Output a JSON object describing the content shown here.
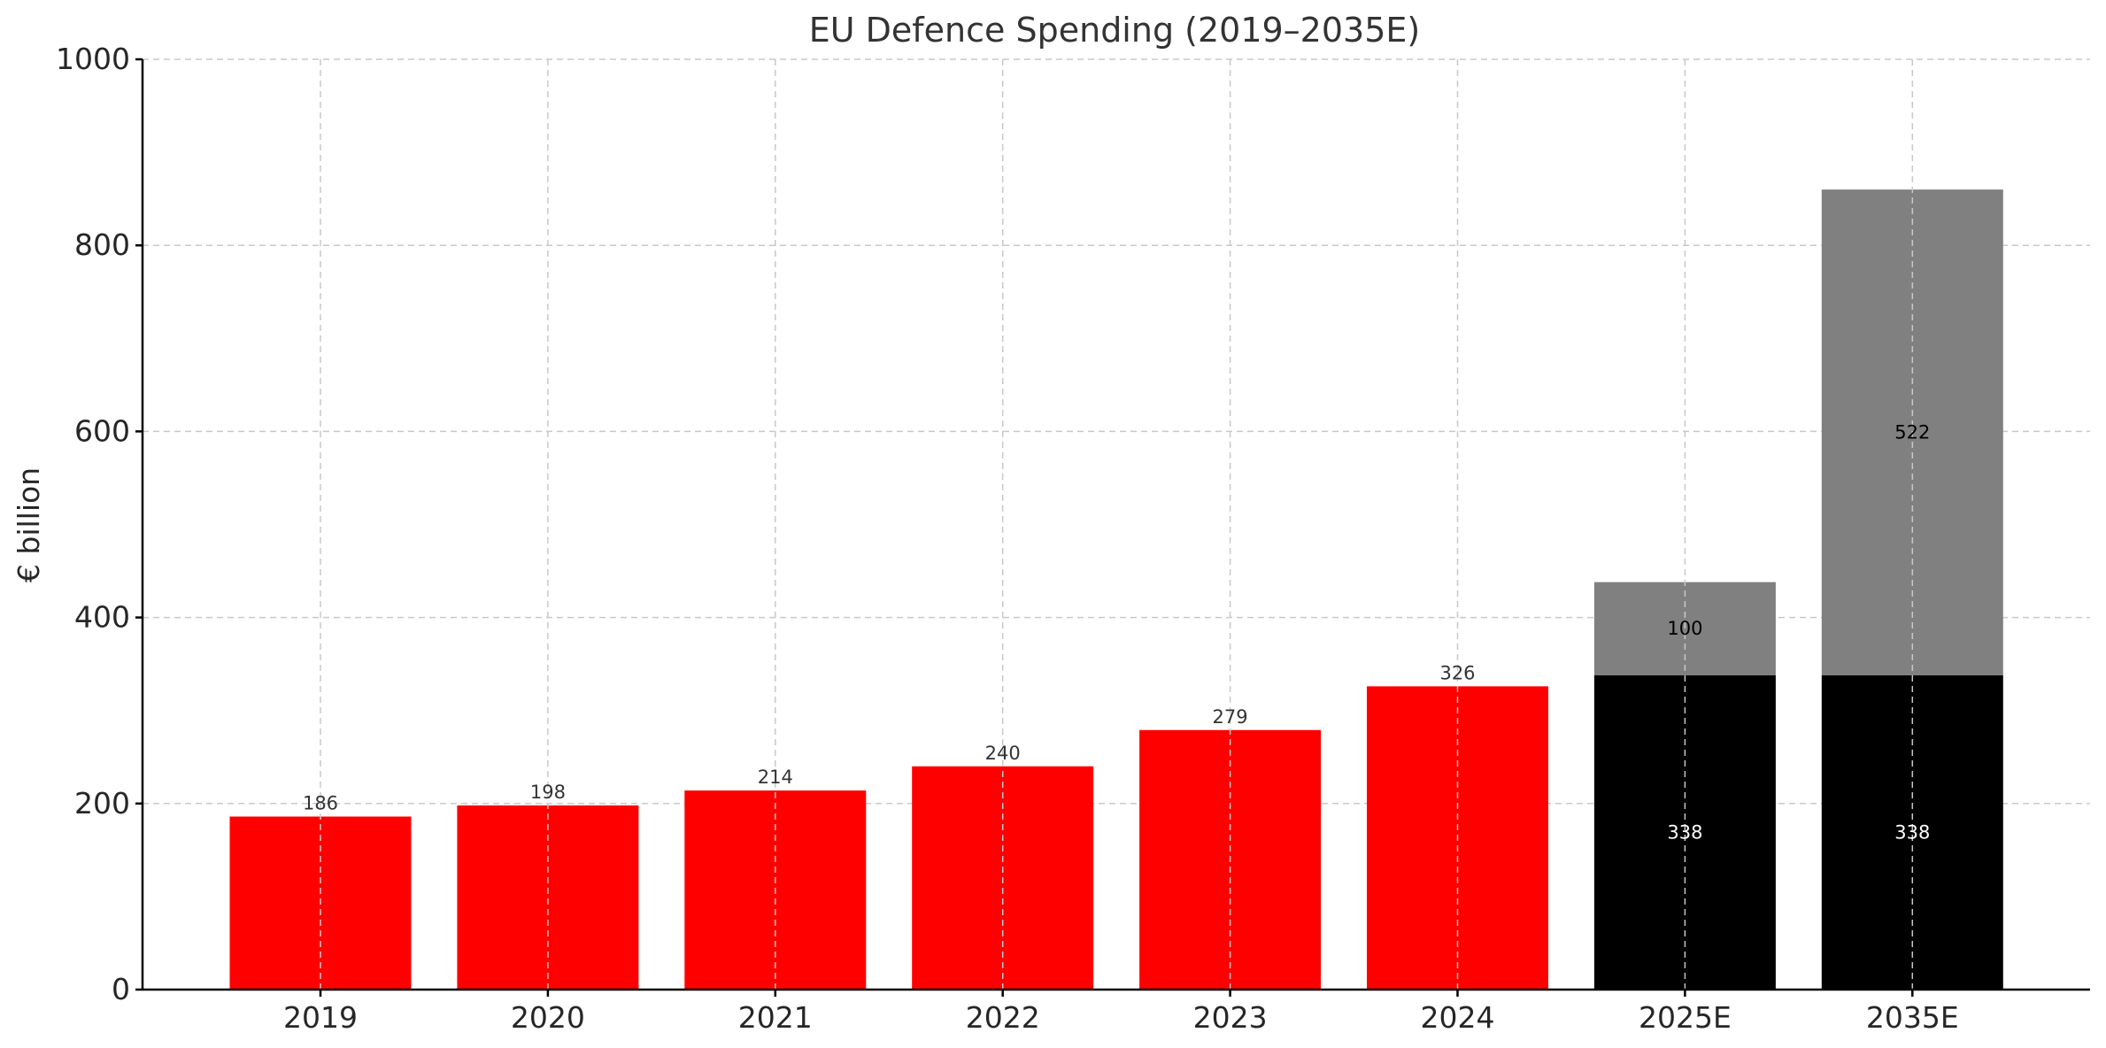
{
  "chart_data": {
    "type": "bar",
    "stacked": true,
    "title": "EU Defence Spending (2019–2035E)",
    "xlabel": "",
    "ylabel": "€ billion",
    "ylim": [
      0,
      1000
    ],
    "yticks": [
      0,
      200,
      400,
      600,
      800,
      1000
    ],
    "grid": true,
    "categories": [
      "2019",
      "2020",
      "2021",
      "2022",
      "2023",
      "2024",
      "2025E",
      "2035E"
    ],
    "series": [
      {
        "color": "#ff0000",
        "values": [
          186,
          198,
          214,
          240,
          279,
          326,
          null,
          null
        ],
        "label_color": "#333333",
        "label_position": "above"
      },
      {
        "color": "#000000",
        "values": [
          null,
          null,
          null,
          null,
          null,
          null,
          338,
          338
        ],
        "label_color": "#ffffff",
        "label_position": "inside"
      },
      {
        "color": "#808080",
        "values": [
          null,
          null,
          null,
          null,
          null,
          null,
          100,
          522
        ],
        "label_color": "#000000",
        "label_position": "inside"
      }
    ]
  }
}
